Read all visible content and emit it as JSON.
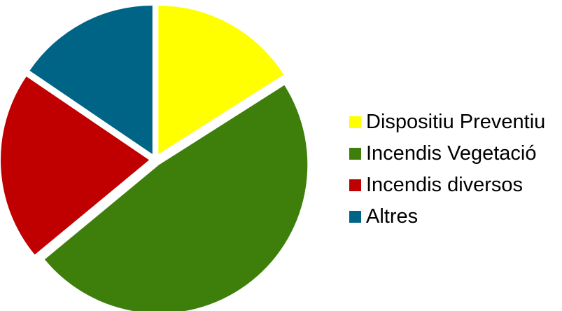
{
  "chart_data": {
    "type": "pie",
    "title": "",
    "slices": [
      {
        "label": "Dispositiu Preventiu",
        "value": 16,
        "color": "#FFFF00"
      },
      {
        "label": "Incendis Vegetació",
        "value": 48,
        "color": "#3E7F0B"
      },
      {
        "label": "Incendis diversos",
        "value": 20.5,
        "color": "#C00000"
      },
      {
        "label": "Altres",
        "value": 15.5,
        "color": "#006487"
      }
    ],
    "legend_position": "right"
  }
}
